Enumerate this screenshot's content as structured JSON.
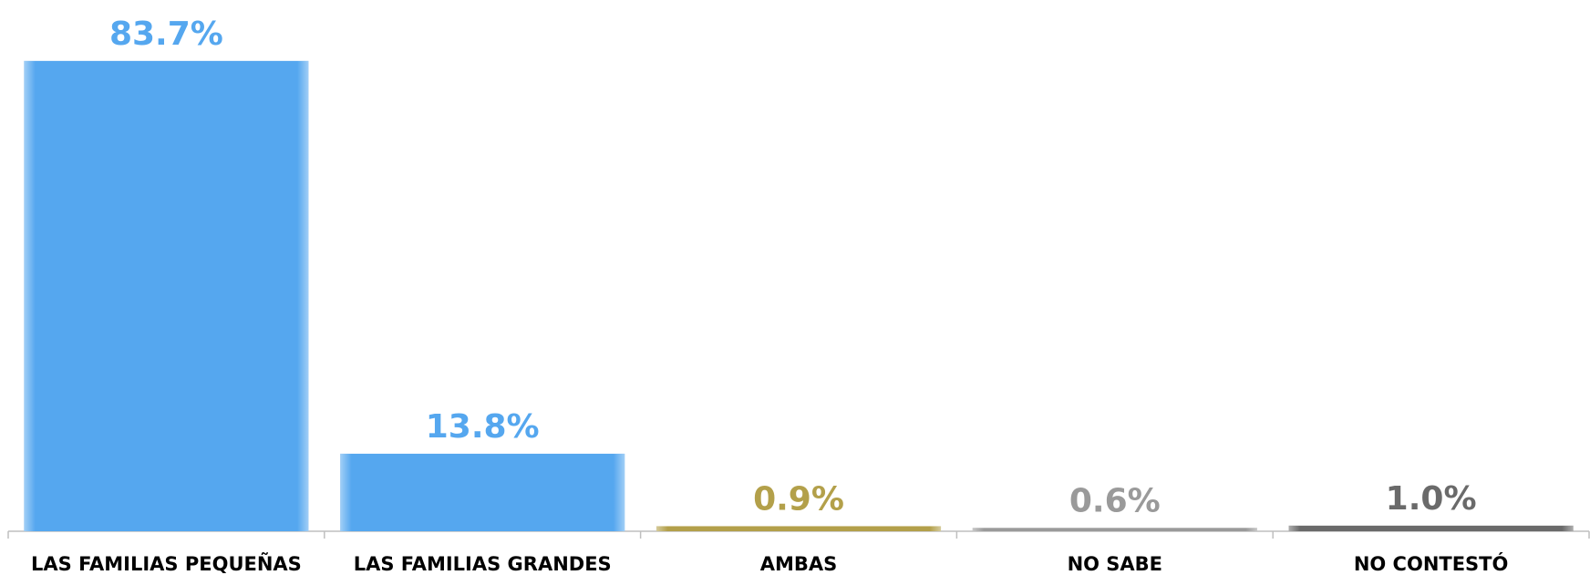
{
  "chart_data": {
    "type": "bar",
    "categories": [
      "LAS FAMILIAS PEQUEÑAS",
      "LAS FAMILIAS GRANDES",
      "AMBAS",
      "NO SABE",
      "NO CONTESTÓ"
    ],
    "values": [
      83.7,
      13.8,
      0.9,
      0.6,
      1.0
    ],
    "value_labels": [
      "83.7%",
      "13.8%",
      "0.9%",
      "0.6%",
      "1.0%"
    ],
    "colors": [
      "#55a7ef",
      "#55a7ef",
      "#b3a04a",
      "#9a9a9a",
      "#6a6a6a"
    ],
    "ylim": [
      0,
      90
    ]
  }
}
